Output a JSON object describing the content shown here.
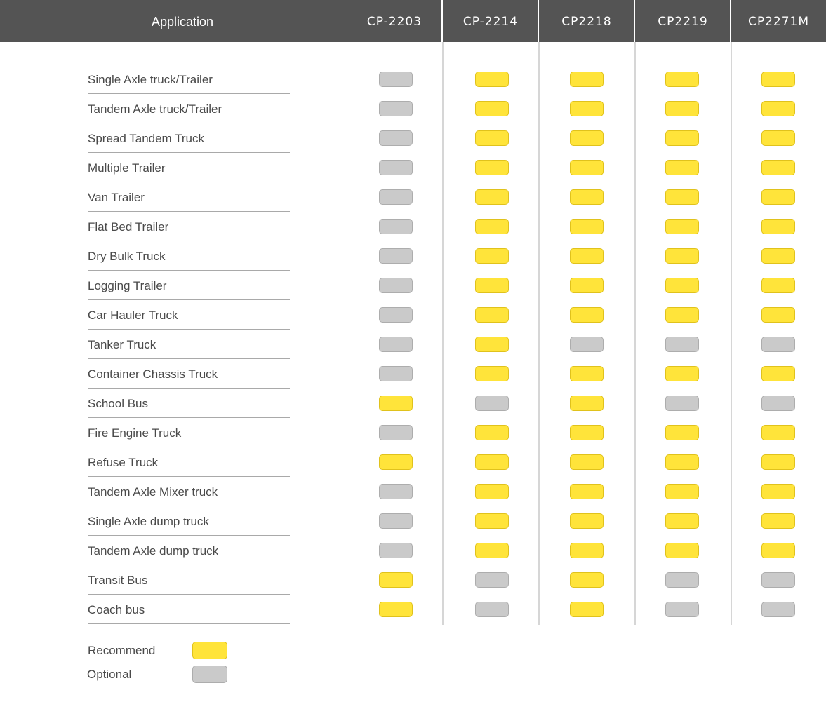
{
  "header": {
    "application_label": "Application",
    "models": [
      "CP-2203",
      "CP-2214",
      "CP2218",
      "CP2219",
      "CP2271M"
    ]
  },
  "rows": [
    {
      "label": "Single Axle truck/Trailer",
      "values": [
        "optional",
        "recommend",
        "recommend",
        "recommend",
        "recommend"
      ]
    },
    {
      "label": "Tandem Axle truck/Trailer",
      "values": [
        "optional",
        "recommend",
        "recommend",
        "recommend",
        "recommend"
      ]
    },
    {
      "label": "Spread Tandem Truck",
      "values": [
        "optional",
        "recommend",
        "recommend",
        "recommend",
        "recommend"
      ]
    },
    {
      "label": "Multiple Trailer",
      "values": [
        "optional",
        "recommend",
        "recommend",
        "recommend",
        "recommend"
      ]
    },
    {
      "label": "Van Trailer",
      "values": [
        "optional",
        "recommend",
        "recommend",
        "recommend",
        "recommend"
      ]
    },
    {
      "label": "Flat Bed Trailer",
      "values": [
        "optional",
        "recommend",
        "recommend",
        "recommend",
        "recommend"
      ]
    },
    {
      "label": "Dry Bulk Truck",
      "values": [
        "optional",
        "recommend",
        "recommend",
        "recommend",
        "recommend"
      ]
    },
    {
      "label": "Logging Trailer",
      "values": [
        "optional",
        "recommend",
        "recommend",
        "recommend",
        "recommend"
      ]
    },
    {
      "label": "Car Hauler Truck",
      "values": [
        "optional",
        "recommend",
        "recommend",
        "recommend",
        "recommend"
      ]
    },
    {
      "label": "Tanker Truck",
      "values": [
        "optional",
        "recommend",
        "optional",
        "optional",
        "optional"
      ]
    },
    {
      "label": "Container Chassis Truck",
      "values": [
        "optional",
        "recommend",
        "recommend",
        "recommend",
        "recommend"
      ]
    },
    {
      "label": "School Bus",
      "values": [
        "recommend",
        "optional",
        "recommend",
        "optional",
        "optional"
      ]
    },
    {
      "label": "Fire Engine Truck",
      "values": [
        "optional",
        "recommend",
        "recommend",
        "recommend",
        "recommend"
      ]
    },
    {
      "label": "Refuse Truck",
      "values": [
        "recommend",
        "recommend",
        "recommend",
        "recommend",
        "recommend"
      ]
    },
    {
      "label": "Tandem Axle Mixer truck",
      "values": [
        "optional",
        "recommend",
        "recommend",
        "recommend",
        "recommend"
      ]
    },
    {
      "label": "Single Axle dump truck",
      "values": [
        "optional",
        "recommend",
        "recommend",
        "recommend",
        "recommend"
      ]
    },
    {
      "label": "Tandem Axle dump truck",
      "values": [
        "optional",
        "recommend",
        "recommend",
        "recommend",
        "recommend"
      ]
    },
    {
      "label": "Transit Bus",
      "values": [
        "recommend",
        "optional",
        "recommend",
        "optional",
        "optional"
      ]
    },
    {
      "label": "Coach bus",
      "values": [
        "recommend",
        "optional",
        "recommend",
        "optional",
        "optional"
      ]
    }
  ],
  "legend": {
    "recommend_label": "Recommend",
    "optional_label": "Optional"
  },
  "colors": {
    "header_bg": "#545454",
    "recommend": "#ffe43a",
    "optional": "#cacaca"
  }
}
